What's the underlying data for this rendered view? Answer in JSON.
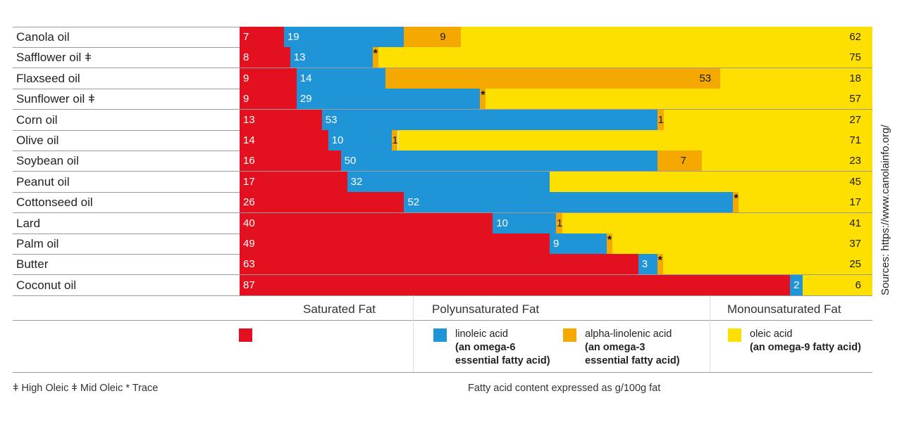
{
  "colors": {
    "saturated": "#e3111f",
    "linoleic": "#1f95d8",
    "alpha_linolenic": "#f5a800",
    "oleic": "#fde000"
  },
  "chart_data": {
    "type": "bar",
    "stacked": true,
    "orientation": "horizontal",
    "unit": "g/100g fat",
    "categories": [
      "Canola oil",
      "Safflower oil ǂ",
      "Flaxseed oil",
      "Sunflower oil ǂ",
      "Corn oil",
      "Olive oil",
      "Soybean oil",
      "Peanut oil",
      "Cottonseed oil",
      "Lard",
      "Palm oil",
      "Butter",
      "Coconut oil"
    ],
    "series": [
      {
        "key": "saturated",
        "values": [
          7,
          8,
          9,
          9,
          13,
          14,
          16,
          17,
          26,
          40,
          49,
          63,
          87
        ]
      },
      {
        "key": "linoleic",
        "values": [
          19,
          13,
          14,
          29,
          53,
          10,
          50,
          32,
          52,
          10,
          9,
          3,
          2
        ]
      },
      {
        "key": "alpha_linolenic",
        "values": [
          9,
          "*",
          53,
          "*",
          1,
          1,
          7,
          null,
          "*",
          1,
          "*",
          "*",
          null
        ]
      },
      {
        "key": "oleic",
        "values": [
          62,
          75,
          18,
          57,
          27,
          71,
          23,
          45,
          17,
          41,
          37,
          25,
          6
        ]
      }
    ],
    "trace_marker": "*"
  },
  "category_headers": {
    "saturated": "Saturated Fat",
    "polyunsaturated": "Polyunsaturated Fat",
    "monounsaturated": "Monounsaturated Fat"
  },
  "legend": {
    "linoleic_name": "linoleic acid",
    "linoleic_desc_1": "(an omega-6",
    "linoleic_desc_2": "essential fatty acid)",
    "alpha_name": "alpha-linolenic acid",
    "alpha_desc_1": "(an omega-3",
    "alpha_desc_2": "essential fatty acid)",
    "oleic_name": "oleic acid",
    "oleic_desc_1": "(an omega-9 fatty acid)"
  },
  "footnote": "ǂ High Oleic ǂ Mid Oleic * Trace",
  "units_note": "Fatty acid content expressed as g/100g fat",
  "source": "Sources: https://www.canolainfo.org/"
}
